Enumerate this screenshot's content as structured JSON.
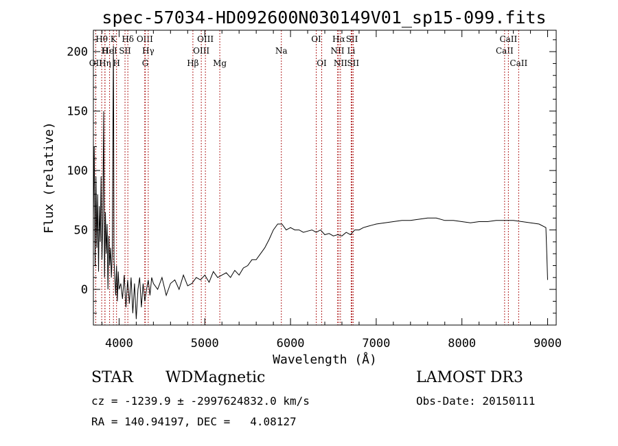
{
  "chart_data": {
    "type": "line",
    "title": "spec-57034-HD092600N030149V01_sp15-099.fits",
    "xlabel": "Wavelength (Å)",
    "ylabel": "Flux (relative)",
    "xlim": [
      3700,
      9100
    ],
    "ylim": [
      -30,
      218
    ],
    "xticks": [
      4000,
      5000,
      6000,
      7000,
      8000,
      9000
    ],
    "yticks": [
      0,
      50,
      100,
      150,
      200
    ],
    "grid": false,
    "series": [
      {
        "x": [
          3700,
          3710,
          3720,
          3730,
          3740,
          3750,
          3760,
          3770,
          3780,
          3790,
          3800,
          3810,
          3820,
          3830,
          3840,
          3850,
          3860,
          3870,
          3880,
          3890,
          3900,
          3910,
          3920,
          3930,
          3933,
          3936,
          3940,
          3950,
          3960,
          3970,
          3980,
          3990,
          4000,
          4020,
          4040,
          4060,
          4080,
          4100,
          4120,
          4140,
          4160,
          4180,
          4200,
          4220,
          4240,
          4260,
          4280,
          4300,
          4320,
          4340,
          4360,
          4380,
          4400,
          4450,
          4500,
          4550,
          4600,
          4650,
          4700,
          4750,
          4800,
          4850,
          4900,
          4950,
          5000,
          5050,
          5100,
          5150,
          5200,
          5250,
          5300,
          5350,
          5400,
          5450,
          5500,
          5550,
          5600,
          5650,
          5700,
          5750,
          5800,
          5850,
          5900,
          5950,
          6000,
          6050,
          6100,
          6150,
          6200,
          6250,
          6300,
          6350,
          6400,
          6450,
          6500,
          6550,
          6600,
          6650,
          6700,
          6750,
          6800,
          6850,
          6900,
          6950,
          7000,
          7100,
          7200,
          7300,
          7400,
          7500,
          7600,
          7700,
          7800,
          7900,
          8000,
          8100,
          8200,
          8300,
          8400,
          8500,
          8600,
          8700,
          8800,
          8900,
          8980,
          8990,
          9000
        ],
        "y": [
          60,
          120,
          20,
          95,
          35,
          80,
          15,
          70,
          40,
          95,
          25,
          60,
          150,
          10,
          65,
          30,
          55,
          0,
          45,
          20,
          35,
          10,
          30,
          160,
          205,
          150,
          25,
          10,
          -5,
          20,
          -10,
          15,
          0,
          5,
          -8,
          12,
          -15,
          8,
          -12,
          10,
          -20,
          5,
          -25,
          0,
          10,
          -15,
          5,
          -10,
          0,
          8,
          -5,
          10,
          5,
          0,
          10,
          -5,
          5,
          8,
          0,
          12,
          3,
          5,
          10,
          8,
          12,
          6,
          15,
          10,
          12,
          14,
          10,
          16,
          12,
          18,
          20,
          25,
          25,
          30,
          35,
          42,
          50,
          55,
          55,
          50,
          52,
          50,
          50,
          48,
          49,
          50,
          48,
          50,
          46,
          47,
          45,
          46,
          45,
          48,
          46,
          50,
          50,
          52,
          53,
          54,
          55,
          56,
          57,
          58,
          58,
          59,
          60,
          60,
          58,
          58,
          57,
          56,
          57,
          57,
          58,
          58,
          58,
          57,
          56,
          55,
          52,
          30,
          8
        ]
      }
    ],
    "line_markers": [
      {
        "label": "OII",
        "x": 3727,
        "row": 3
      },
      {
        "label": "Hθ",
        "x": 3797,
        "row": 1
      },
      {
        "label": "H",
        "x": 3835,
        "row": 2
      },
      {
        "label": "Hη",
        "x": 3835,
        "row": 3
      },
      {
        "label": "HeI",
        "x": 3889,
        "row": 2
      },
      {
        "label": "K",
        "x": 3934,
        "row": 1
      },
      {
        "label": "H",
        "x": 3970,
        "row": 3
      },
      {
        "label": "SII",
        "x": 4069,
        "row": 2
      },
      {
        "label": "Hδ",
        "x": 4102,
        "row": 1
      },
      {
        "label": "OIII",
        "x": 4300,
        "row": 1
      },
      {
        "label": "Hγ",
        "x": 4340,
        "row": 2
      },
      {
        "label": "G",
        "x": 4305,
        "row": 3
      },
      {
        "label": "Hβ",
        "x": 4861,
        "row": 3
      },
      {
        "label": "OIII",
        "x": 4959,
        "row": 2
      },
      {
        "label": "OIII",
        "x": 5007,
        "row": 1
      },
      {
        "label": "Mg",
        "x": 5175,
        "row": 3
      },
      {
        "label": "Na",
        "x": 5893,
        "row": 2
      },
      {
        "label": "OI",
        "x": 6300,
        "row": 1
      },
      {
        "label": "OI",
        "x": 6364,
        "row": 3
      },
      {
        "label": "NII",
        "x": 6548,
        "row": 2
      },
      {
        "label": "Hα",
        "x": 6563,
        "row": 1
      },
      {
        "label": "NII",
        "x": 6583,
        "row": 3
      },
      {
        "label": "SII",
        "x": 6717,
        "row": 1
      },
      {
        "label": "Li",
        "x": 6708,
        "row": 2
      },
      {
        "label": "SII",
        "x": 6731,
        "row": 3
      },
      {
        "label": "CaII",
        "x": 8498,
        "row": 2
      },
      {
        "label": "CaII",
        "x": 8542,
        "row": 1
      },
      {
        "label": "CaII",
        "x": 8662,
        "row": 3
      }
    ]
  },
  "info": {
    "object_class": "STAR",
    "subclass": "WDMagnetic",
    "survey": "LAMOST DR3",
    "cz_line": "cz = -1239.9 ± -2997624832.0 km/s",
    "obs_date": "Obs-Date: 20150111",
    "coords": "RA = 140.94197, DEC =   4.08127"
  },
  "colors": {
    "line_marker": "#b22222",
    "spectrum": "#000000",
    "axes": "#000000"
  }
}
